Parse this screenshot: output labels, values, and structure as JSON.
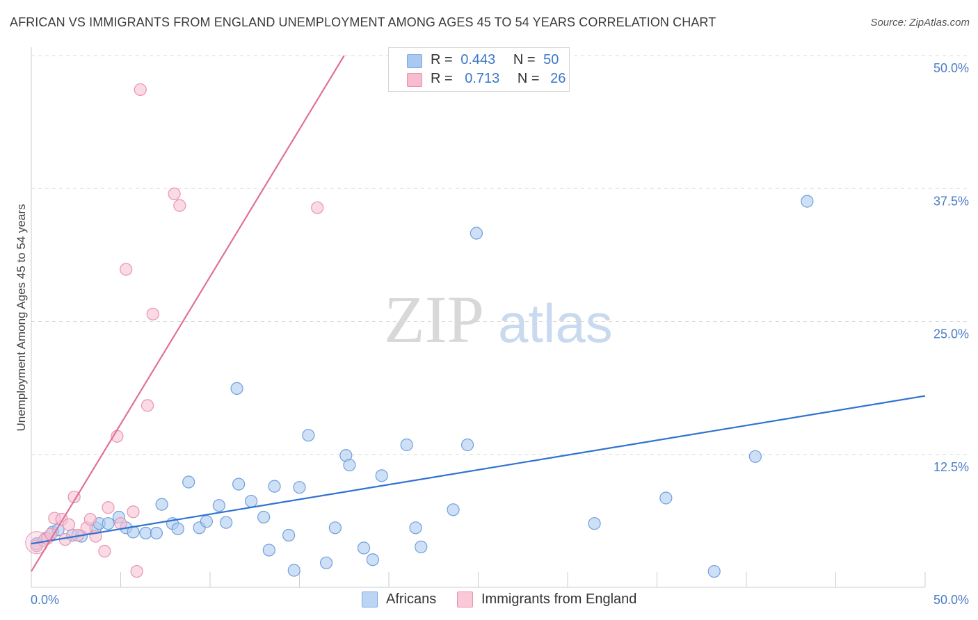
{
  "title": "AFRICAN VS IMMIGRANTS FROM ENGLAND UNEMPLOYMENT AMONG AGES 45 TO 54 YEARS CORRELATION CHART",
  "source": "Source: ZipAtlas.com",
  "watermark": {
    "zip": "ZIP",
    "atlas": "atlas"
  },
  "legend_top": [
    {
      "r_label": "R =",
      "r_value": "0.443",
      "n_label": "N =",
      "n_value": "50",
      "color": "#a9c8f2",
      "border": "#7fa8e0"
    },
    {
      "r_label": "R =",
      "r_value": "0.713",
      "n_label": "N =",
      "n_value": "26",
      "color": "#f7bccd",
      "border": "#ec8fae"
    }
  ],
  "legend_bottom": [
    {
      "label": "Africans",
      "color": "#bcd5f5",
      "border": "#7fa8e0"
    },
    {
      "label": "Immigrants from England",
      "color": "#f9c9d8",
      "border": "#ec8fae"
    }
  ],
  "colors": {
    "blue_fill": "#aecbf0",
    "blue_stroke": "#6f9fdc",
    "blue_line": "#2f72d0",
    "pink_fill": "#f7c1d2",
    "pink_stroke": "#e993b0",
    "pink_line": "#e0709a",
    "grid": "#d9d9d9",
    "tick_text": "#4a7cc7"
  },
  "chart_data": {
    "type": "scatter",
    "title": "AFRICAN VS IMMIGRANTS FROM ENGLAND UNEMPLOYMENT AMONG AGES 45 TO 54 YEARS CORRELATION CHART",
    "xlabel": "",
    "ylabel": "Unemployment Among Ages 45 to 54 years",
    "xlim": [
      0,
      50
    ],
    "ylim": [
      0,
      50
    ],
    "x_tick_labels": [
      {
        "value": 0,
        "label": "0.0%"
      },
      {
        "value": 50,
        "label": "50.0%"
      }
    ],
    "y_tick_labels": [
      {
        "value": 12.5,
        "label": "12.5%"
      },
      {
        "value": 25,
        "label": "25.0%"
      },
      {
        "value": 37.5,
        "label": "37.5%"
      },
      {
        "value": 50,
        "label": "50.0%"
      }
    ],
    "grid": true,
    "series": [
      {
        "name": "Africans",
        "r": 0.443,
        "n": 50,
        "trend": {
          "x0": 0,
          "y0": 4.1,
          "x1": 50,
          "y1": 18.0
        },
        "points": [
          [
            0.3,
            4.1
          ],
          [
            0.8,
            4.6
          ],
          [
            1.2,
            5.2
          ],
          [
            1.5,
            5.4
          ],
          [
            2.3,
            4.9
          ],
          [
            2.8,
            4.8
          ],
          [
            3.6,
            5.6
          ],
          [
            3.8,
            6.0
          ],
          [
            4.3,
            6.0
          ],
          [
            4.9,
            6.6
          ],
          [
            5.3,
            5.6
          ],
          [
            5.7,
            5.2
          ],
          [
            6.4,
            5.1
          ],
          [
            7.0,
            5.1
          ],
          [
            7.3,
            7.8
          ],
          [
            7.9,
            6.0
          ],
          [
            8.2,
            5.5
          ],
          [
            8.8,
            9.9
          ],
          [
            9.4,
            5.6
          ],
          [
            9.8,
            6.2
          ],
          [
            10.5,
            7.7
          ],
          [
            10.9,
            6.1
          ],
          [
            11.5,
            18.7
          ],
          [
            11.6,
            9.7
          ],
          [
            12.3,
            8.1
          ],
          [
            13.0,
            6.6
          ],
          [
            13.3,
            3.5
          ],
          [
            13.6,
            9.5
          ],
          [
            14.4,
            4.9
          ],
          [
            14.7,
            1.6
          ],
          [
            15.0,
            9.4
          ],
          [
            15.5,
            14.3
          ],
          [
            16.5,
            2.3
          ],
          [
            17.0,
            5.6
          ],
          [
            17.6,
            12.4
          ],
          [
            17.8,
            11.5
          ],
          [
            18.6,
            3.7
          ],
          [
            19.1,
            2.6
          ],
          [
            19.6,
            10.5
          ],
          [
            21.0,
            13.4
          ],
          [
            21.5,
            5.6
          ],
          [
            21.8,
            3.8
          ],
          [
            23.6,
            7.3
          ],
          [
            24.4,
            13.4
          ],
          [
            24.9,
            33.3
          ],
          [
            31.5,
            6.0
          ],
          [
            35.5,
            8.4
          ],
          [
            38.2,
            1.5
          ],
          [
            40.5,
            12.3
          ],
          [
            43.4,
            36.3
          ]
        ]
      },
      {
        "name": "Immigrants from England",
        "r": 0.713,
        "n": 26,
        "trend": {
          "x0": 0,
          "y0": 1.5,
          "x1": 17.5,
          "y1": 50
        },
        "points": [
          [
            0.3,
            3.9
          ],
          [
            0.7,
            4.4
          ],
          [
            0.9,
            4.6
          ],
          [
            1.1,
            5.0
          ],
          [
            1.3,
            6.5
          ],
          [
            1.7,
            6.4
          ],
          [
            1.9,
            4.5
          ],
          [
            2.1,
            5.9
          ],
          [
            2.4,
            8.5
          ],
          [
            2.6,
            4.9
          ],
          [
            3.1,
            5.6
          ],
          [
            3.3,
            6.4
          ],
          [
            3.6,
            4.8
          ],
          [
            4.1,
            3.4
          ],
          [
            4.3,
            7.5
          ],
          [
            4.8,
            14.2
          ],
          [
            5.0,
            6.0
          ],
          [
            5.3,
            29.9
          ],
          [
            5.7,
            7.1
          ],
          [
            5.9,
            1.5
          ],
          [
            6.1,
            46.8
          ],
          [
            6.5,
            17.1
          ],
          [
            6.8,
            25.7
          ],
          [
            8.0,
            37.0
          ],
          [
            8.3,
            35.9
          ],
          [
            16.0,
            35.7
          ]
        ]
      }
    ]
  }
}
